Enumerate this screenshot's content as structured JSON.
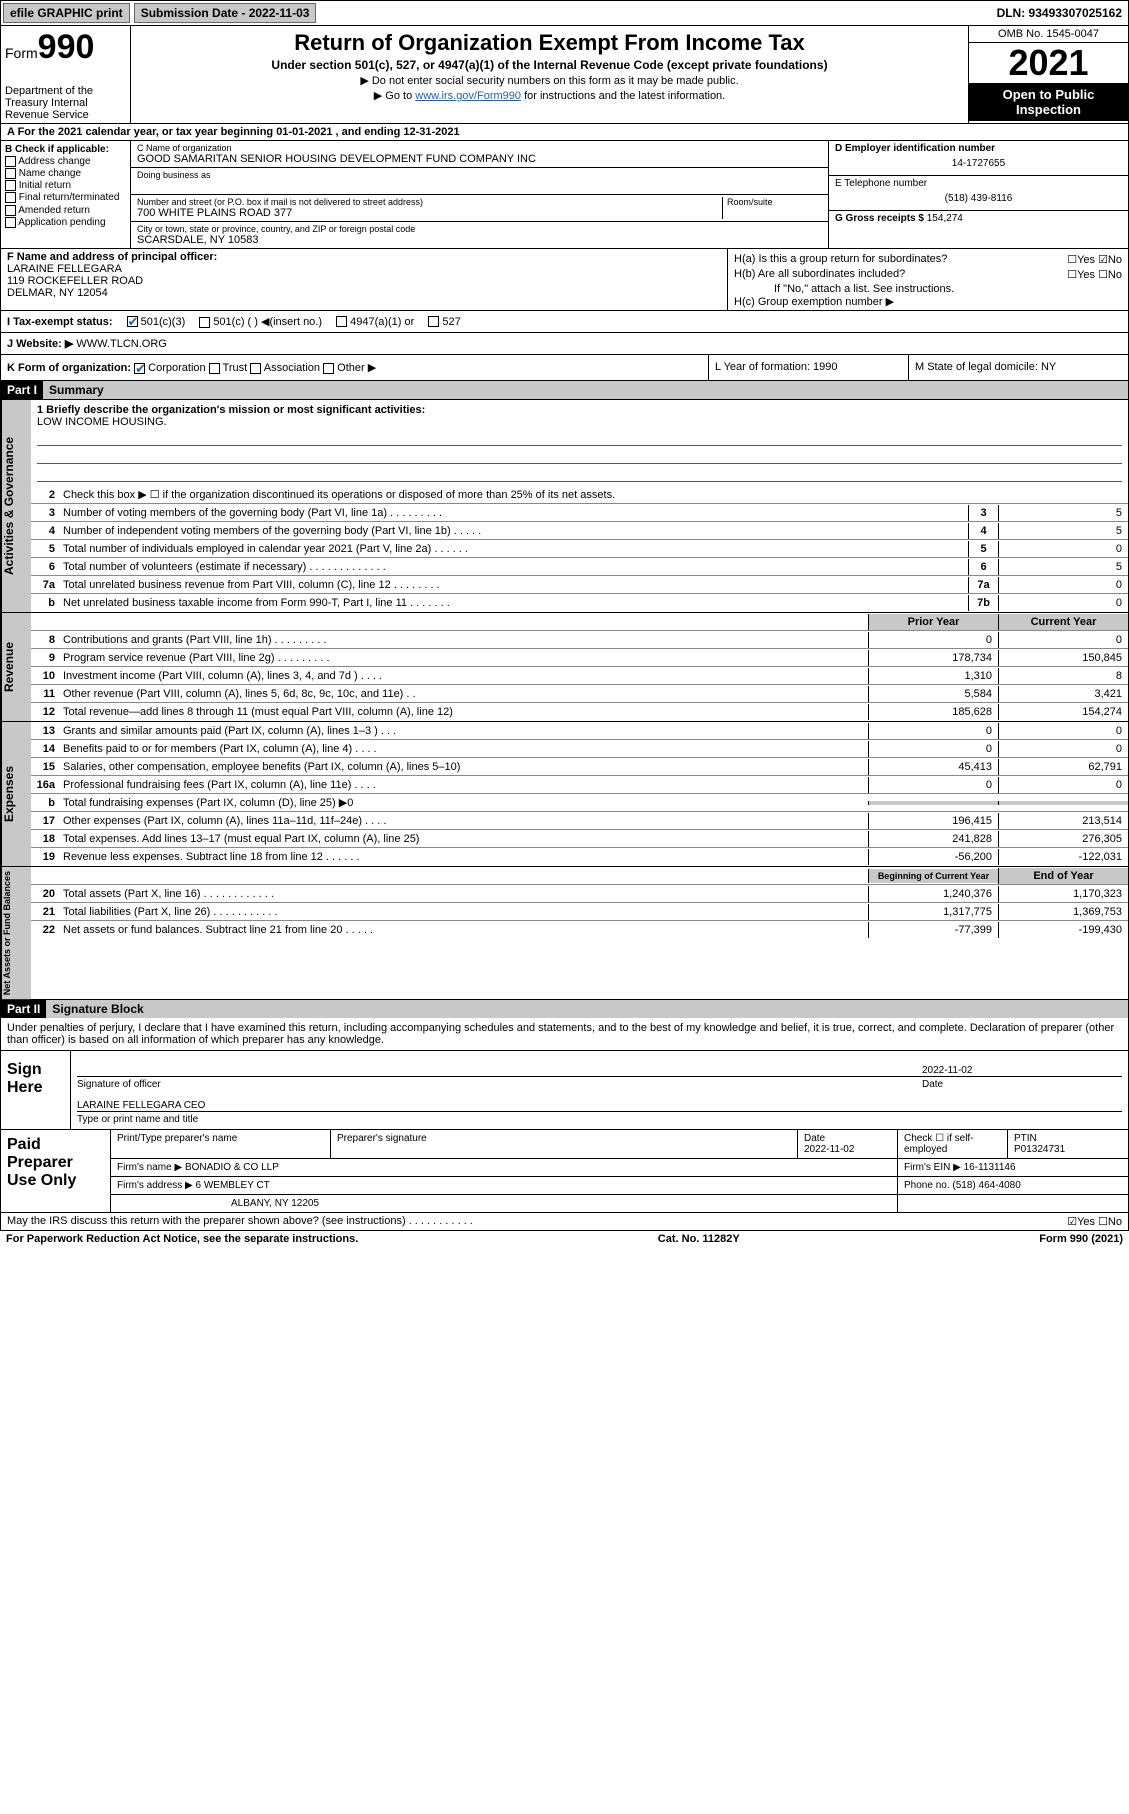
{
  "topbar": {
    "efile": "efile GRAPHIC print",
    "sub_label": "Submission Date - 2022-11-03",
    "dln": "DLN: 93493307025162"
  },
  "header": {
    "form_prefix": "Form",
    "form_num": "990",
    "dept": "Department of the Treasury\nInternal Revenue Service",
    "title": "Return of Organization Exempt From Income Tax",
    "sub": "Under section 501(c), 527, or 4947(a)(1) of the Internal Revenue Code (except private foundations)",
    "note1": "▶ Do not enter social security numbers on this form as it may be made public.",
    "note2_pre": "▶ Go to ",
    "note2_link": "www.irs.gov/Form990",
    "note2_post": " for instructions and the latest information.",
    "omb": "OMB No. 1545-0047",
    "year": "2021",
    "open": "Open to Public Inspection"
  },
  "rowA": "A For the 2021 calendar year, or tax year beginning 01-01-2021   , and ending 12-31-2021",
  "colB": {
    "title": "B Check if applicable:",
    "items": [
      "Address change",
      "Name change",
      "Initial return",
      "Final return/terminated",
      "Amended return",
      "Application pending"
    ]
  },
  "colC": {
    "name_lab": "C Name of organization",
    "name": "GOOD SAMARITAN SENIOR HOUSING DEVELOPMENT FUND COMPANY INC",
    "dba_lab": "Doing business as",
    "addr_lab": "Number and street (or P.O. box if mail is not delivered to street address)",
    "room_lab": "Room/suite",
    "addr": "700 WHITE PLAINS ROAD 377",
    "city_lab": "City or town, state or province, country, and ZIP or foreign postal code",
    "city": "SCARSDALE, NY  10583"
  },
  "colDE": {
    "d_lab": "D Employer identification number",
    "d_val": "14-1727655",
    "e_lab": "E Telephone number",
    "e_val": "(518) 439-8116",
    "g_lab": "G Gross receipts $",
    "g_val": "154,274"
  },
  "colF": {
    "lab": "F Name and address of principal officer:",
    "name": "LARAINE FELLEGARA",
    "addr1": "119 ROCKEFELLER ROAD",
    "addr2": "DELMAR, NY  12054"
  },
  "colH": {
    "ha": "H(a)  Is this a group return for subordinates?",
    "ha_ans": "☐Yes ☑No",
    "hb": "H(b)  Are all subordinates included?",
    "hb_ans": "☐Yes ☐No",
    "hb_note": "If \"No,\" attach a list. See instructions.",
    "hc": "H(c)  Group exemption number ▶"
  },
  "rowI": {
    "label": "I   Tax-exempt status:",
    "o1": "501(c)(3)",
    "o2": "501(c) (   ) ◀(insert no.)",
    "o3": "4947(a)(1) or",
    "o4": "527"
  },
  "rowJ": {
    "label": "J   Website: ▶",
    "val": "WWW.TLCN.ORG"
  },
  "rowK": {
    "label": "K Form of organization:",
    "o1": "Corporation",
    "o2": "Trust",
    "o3": "Association",
    "o4": "Other ▶",
    "l": "L Year of formation: 1990",
    "m": "M State of legal domicile: NY"
  },
  "part1": {
    "hdr": "Part I",
    "title": "Summary"
  },
  "summary": {
    "briefly_lab": "1   Briefly describe the organization's mission or most significant activities:",
    "briefly_val": "LOW INCOME HOUSING.",
    "line2": "Check this box ▶ ☐  if the organization discontinued its operations or disposed of more than 25% of its net assets.",
    "lines_gov": [
      {
        "n": "3",
        "t": "Number of voting members of the governing body (Part VI, line 1a)  .   .   .   .   .   .   .   .   .",
        "b": "3",
        "v": "5"
      },
      {
        "n": "4",
        "t": "Number of independent voting members of the governing body (Part VI, line 1b)  .   .   .   .   .",
        "b": "4",
        "v": "5"
      },
      {
        "n": "5",
        "t": "Total number of individuals employed in calendar year 2021 (Part V, line 2a)  .   .   .   .   .   .",
        "b": "5",
        "v": "0"
      },
      {
        "n": "6",
        "t": "Total number of volunteers (estimate if necessary)  .   .   .   .   .   .   .   .   .   .   .   .   .",
        "b": "6",
        "v": "5"
      },
      {
        "n": "7a",
        "t": "Total unrelated business revenue from Part VIII, column (C), line 12  .   .   .   .   .   .   .   .",
        "b": "7a",
        "v": "0"
      },
      {
        "n": "b",
        "t": "Net unrelated business taxable income from Form 990-T, Part I, line 11  .   .   .   .   .   .   .",
        "b": "7b",
        "v": "0"
      }
    ],
    "col_hdr_prior": "Prior Year",
    "col_hdr_curr": "Current Year",
    "lines_rev": [
      {
        "n": "8",
        "t": "Contributions and grants (Part VIII, line 1h)  .   .   .   .   .   .   .   .   .",
        "p": "0",
        "c": "0"
      },
      {
        "n": "9",
        "t": "Program service revenue (Part VIII, line 2g)  .   .   .   .   .   .   .   .   .",
        "p": "178,734",
        "c": "150,845"
      },
      {
        "n": "10",
        "t": "Investment income (Part VIII, column (A), lines 3, 4, and 7d )  .   .   .   .",
        "p": "1,310",
        "c": "8"
      },
      {
        "n": "11",
        "t": "Other revenue (Part VIII, column (A), lines 5, 6d, 8c, 9c, 10c, and 11e)  .   .",
        "p": "5,584",
        "c": "3,421"
      },
      {
        "n": "12",
        "t": "Total revenue—add lines 8 through 11 (must equal Part VIII, column (A), line 12)",
        "p": "185,628",
        "c": "154,274"
      }
    ],
    "lines_exp": [
      {
        "n": "13",
        "t": "Grants and similar amounts paid (Part IX, column (A), lines 1–3 )  .   .   .",
        "p": "0",
        "c": "0"
      },
      {
        "n": "14",
        "t": "Benefits paid to or for members (Part IX, column (A), line 4)  .   .   .   .",
        "p": "0",
        "c": "0"
      },
      {
        "n": "15",
        "t": "Salaries, other compensation, employee benefits (Part IX, column (A), lines 5–10)",
        "p": "45,413",
        "c": "62,791"
      },
      {
        "n": "16a",
        "t": "Professional fundraising fees (Part IX, column (A), line 11e)  .   .   .   .",
        "p": "0",
        "c": "0"
      },
      {
        "n": "b",
        "t": "Total fundraising expenses (Part IX, column (D), line 25) ▶0",
        "p": "",
        "c": "",
        "shade": true
      },
      {
        "n": "17",
        "t": "Other expenses (Part IX, column (A), lines 11a–11d, 11f–24e)  .   .   .   .",
        "p": "196,415",
        "c": "213,514"
      },
      {
        "n": "18",
        "t": "Total expenses. Add lines 13–17 (must equal Part IX, column (A), line 25)",
        "p": "241,828",
        "c": "276,305"
      },
      {
        "n": "19",
        "t": "Revenue less expenses. Subtract line 18 from line 12  .   .   .   .   .   .",
        "p": "-56,200",
        "c": "-122,031"
      }
    ],
    "col_hdr_beg": "Beginning of Current Year",
    "col_hdr_end": "End of Year",
    "lines_net": [
      {
        "n": "20",
        "t": "Total assets (Part X, line 16)  .   .   .   .   .   .   .   .   .   .   .   .",
        "p": "1,240,376",
        "c": "1,170,323"
      },
      {
        "n": "21",
        "t": "Total liabilities (Part X, line 26)  .   .   .   .   .   .   .   .   .   .   .",
        "p": "1,317,775",
        "c": "1,369,753"
      },
      {
        "n": "22",
        "t": "Net assets or fund balances. Subtract line 21 from line 20  .   .   .   .   .",
        "p": "-77,399",
        "c": "-199,430"
      }
    ]
  },
  "vtabs": {
    "gov": "Activities & Governance",
    "rev": "Revenue",
    "exp": "Expenses",
    "net": "Net Assets or Fund Balances"
  },
  "part2": {
    "hdr": "Part II",
    "title": "Signature Block",
    "decl": "Under penalties of perjury, I declare that I have examined this return, including accompanying schedules and statements, and to the best of my knowledge and belief, it is true, correct, and complete. Declaration of preparer (other than officer) is based on all information of which preparer has any knowledge."
  },
  "sign": {
    "label": "Sign Here",
    "sig_lab": "Signature of officer",
    "date_lab": "Date",
    "date": "2022-11-02",
    "name": "LARAINE FELLEGARA CEO",
    "name_lab": "Type or print name and title"
  },
  "paid": {
    "label": "Paid Preparer Use Only",
    "h1": "Print/Type preparer's name",
    "h2": "Preparer's signature",
    "h3_lab": "Date",
    "h3": "2022-11-02",
    "h4": "Check ☐ if self-employed",
    "h5_lab": "PTIN",
    "h5": "P01324731",
    "firm_name_lab": "Firm's name    ▶",
    "firm_name": "BONADIO & CO LLP",
    "firm_ein_lab": "Firm's EIN ▶",
    "firm_ein": "16-1131146",
    "firm_addr_lab": "Firm's address ▶",
    "firm_addr1": "6 WEMBLEY CT",
    "firm_addr2": "ALBANY, NY 12205",
    "phone_lab": "Phone no.",
    "phone": "(518) 464-4080"
  },
  "footer": {
    "q": "May the IRS discuss this return with the preparer shown above? (see instructions)  .   .   .   .   .   .   .   .   .   .   .",
    "ans": "☑Yes  ☐No",
    "pra": "For Paperwork Reduction Act Notice, see the separate instructions.",
    "cat": "Cat. No. 11282Y",
    "form": "Form 990 (2021)"
  }
}
